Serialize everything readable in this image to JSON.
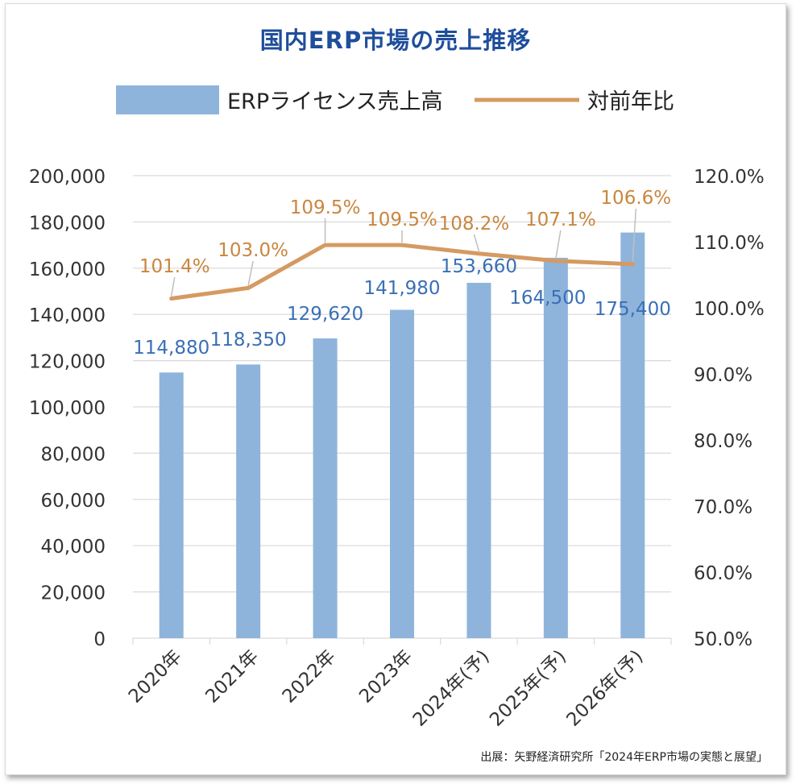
{
  "title": "国内ERP市場の売上推移",
  "source": "出展：矢野経済研究所「2024年ERP市場の実態と展望」",
  "colors": {
    "bar": "#8eb4dc",
    "line": "#d59a61",
    "bar_label": "#3a6fb5",
    "line_label": "#c9863f",
    "title": "#1f4e9b",
    "grid": "#d9d9d9",
    "axis_text": "#333333"
  },
  "chart_data": {
    "type": "bar",
    "title": "国内ERP市場の売上推移",
    "categories": [
      "2020年",
      "2021年",
      "2022年",
      "2023年",
      "2024年(予)",
      "2025年(予)",
      "2026年(予)"
    ],
    "series": [
      {
        "name": "ERPライセンス売上高",
        "type": "bar",
        "axis": "left",
        "values": [
          114880,
          118350,
          129620,
          141980,
          153660,
          164500,
          175400
        ],
        "labels": [
          "114,880",
          "118,350",
          "129,620",
          "141,980",
          "153,660",
          "164,500",
          "175,400"
        ]
      },
      {
        "name": "対前年比",
        "type": "line",
        "axis": "right",
        "values": [
          101.4,
          103.0,
          109.5,
          109.5,
          108.2,
          107.1,
          106.6
        ],
        "labels": [
          "101.4%",
          "103.0%",
          "109.5%",
          "109.5%",
          "108.2%",
          "107.1%",
          "106.6%"
        ]
      }
    ],
    "y_left": {
      "min": 0,
      "max": 200000,
      "ticks": [
        "0",
        "20,000",
        "40,000",
        "60,000",
        "80,000",
        "100,000",
        "120,000",
        "140,000",
        "160,000",
        "180,000",
        "200,000"
      ]
    },
    "y_right": {
      "min": 50,
      "max": 120,
      "ticks": [
        "50.0%",
        "60.0%",
        "70.0%",
        "80.0%",
        "90.0%",
        "100.0%",
        "110.0%",
        "120.0%"
      ]
    },
    "grid": true,
    "legend": "top"
  }
}
